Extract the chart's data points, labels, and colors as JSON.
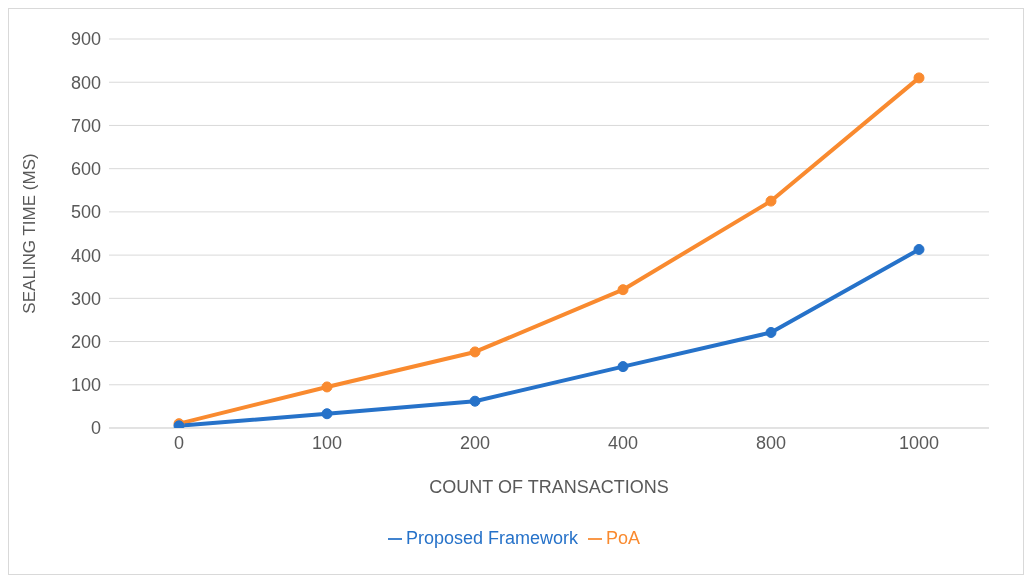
{
  "chart_data": {
    "type": "line",
    "xlabel": "COUNT OF  TRANSACTIONS",
    "ylabel": "SEALING TIME (MS)",
    "categories": [
      "0",
      "100",
      "200",
      "400",
      "800",
      "1000"
    ],
    "series": [
      {
        "name": "Proposed Framework",
        "color": "#2672c9",
        "values": [
          5,
          33,
          62,
          142,
          221,
          413
        ]
      },
      {
        "name": "PoA",
        "color": "#f98a2f",
        "values": [
          10,
          95,
          176,
          320,
          525,
          810
        ]
      }
    ],
    "ylim": [
      0,
      900
    ],
    "yticks": [
      0,
      100,
      200,
      300,
      400,
      500,
      600,
      700,
      800,
      900
    ],
    "grid": "y",
    "legend": "bottom",
    "marker": "circle",
    "line_style": "solid"
  }
}
